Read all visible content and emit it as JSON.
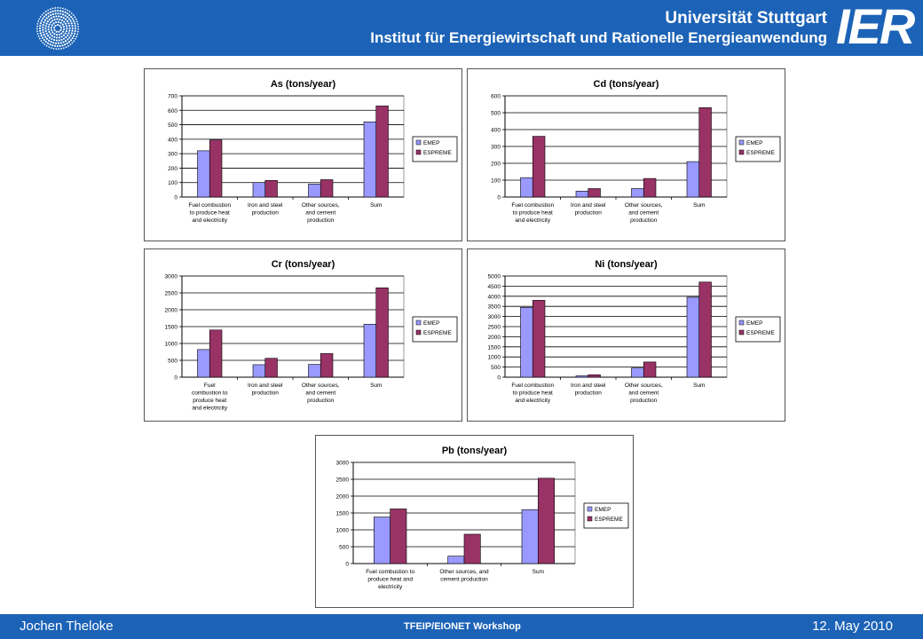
{
  "header": {
    "university": "Universität Stuttgart",
    "institute": "Institut für Energiewirtschaft und Rationelle Energieanwendung",
    "acronym": "IER",
    "bar_color": "#1c63b7"
  },
  "footer": {
    "author": "Jochen Theloke",
    "event": "TFEIP/EIONET Workshop",
    "date": "12. May 2010"
  },
  "colors": {
    "EMEP": "#9999ff",
    "ESPREME": "#993366"
  },
  "chart_data": [
    {
      "id": "as",
      "type": "bar",
      "title": "As (tons/year)",
      "categories": [
        [
          "Fuel combustion",
          "to produce heat",
          "and electricity"
        ],
        [
          "Iron and steel",
          "production"
        ],
        [
          "Other sources,",
          "and cement",
          "production"
        ],
        [
          "Sum"
        ]
      ],
      "series": [
        {
          "name": "EMEP",
          "values": [
            320,
            100,
            90,
            520
          ]
        },
        {
          "name": "ESPREME",
          "values": [
            395,
            115,
            120,
            630
          ]
        }
      ],
      "ylim": [
        0,
        700
      ],
      "yticks": [
        0,
        100,
        200,
        300,
        400,
        500,
        600,
        700
      ],
      "grid": true,
      "legend": "right"
    },
    {
      "id": "cd",
      "type": "bar",
      "title": "Cd (tons/year)",
      "categories": [
        [
          "Fuel combustion",
          "to produce heat",
          "and electricity"
        ],
        [
          "Iron and steel",
          "production"
        ],
        [
          "Other sources,",
          "and cement",
          "production"
        ],
        [
          "Sum"
        ]
      ],
      "series": [
        {
          "name": "EMEP",
          "values": [
            115,
            35,
            50,
            210
          ]
        },
        {
          "name": "ESPREME",
          "values": [
            360,
            50,
            110,
            530
          ]
        }
      ],
      "ylim": [
        0,
        600
      ],
      "yticks": [
        0,
        100,
        200,
        300,
        400,
        500,
        600
      ],
      "grid": true,
      "legend": "right"
    },
    {
      "id": "cr",
      "type": "bar",
      "title": "Cr (tons/year)",
      "categories": [
        [
          "Fuel",
          "combustion to",
          "produce heat",
          "and electricity"
        ],
        [
          "Iron and steel",
          "production"
        ],
        [
          "Other sources,",
          "and cement",
          "production"
        ],
        [
          "Sum"
        ]
      ],
      "series": [
        {
          "name": "EMEP",
          "values": [
            820,
            370,
            380,
            1570
          ]
        },
        {
          "name": "ESPREME",
          "values": [
            1400,
            560,
            700,
            2650
          ]
        }
      ],
      "ylim": [
        0,
        3000
      ],
      "yticks": [
        0,
        500,
        1000,
        1500,
        2000,
        2500,
        3000
      ],
      "grid": true,
      "legend": "right"
    },
    {
      "id": "ni",
      "type": "bar",
      "title": "Ni (tons/year)",
      "categories": [
        [
          "Fuel combustion",
          "to produce heat",
          "and electricity"
        ],
        [
          "Iron and steel",
          "production"
        ],
        [
          "Other sources,",
          "and cement",
          "production"
        ],
        [
          "Sum"
        ]
      ],
      "series": [
        {
          "name": "EMEP",
          "values": [
            3450,
            70,
            450,
            3950
          ]
        },
        {
          "name": "ESPREME",
          "values": [
            3800,
            120,
            750,
            4700
          ]
        }
      ],
      "ylim": [
        0,
        5000
      ],
      "yticks": [
        0,
        500,
        1000,
        1500,
        2000,
        2500,
        3000,
        3500,
        4000,
        4500,
        5000
      ],
      "grid": true,
      "legend": "right"
    },
    {
      "id": "pb",
      "type": "bar",
      "title": "Pb (tons/year)",
      "categories": [
        [
          "Fuel combustion to",
          "produce heat and",
          "electricity"
        ],
        [
          "Other sources, and",
          "cement production"
        ],
        [
          "Sum"
        ]
      ],
      "series": [
        {
          "name": "EMEP",
          "values": [
            1380,
            220,
            1600
          ]
        },
        {
          "name": "ESPREME",
          "values": [
            1620,
            870,
            2530
          ]
        }
      ],
      "ylim": [
        0,
        3000
      ],
      "yticks": [
        0,
        500,
        1000,
        1500,
        2000,
        2500,
        3000
      ],
      "grid": true,
      "legend": "right"
    }
  ]
}
